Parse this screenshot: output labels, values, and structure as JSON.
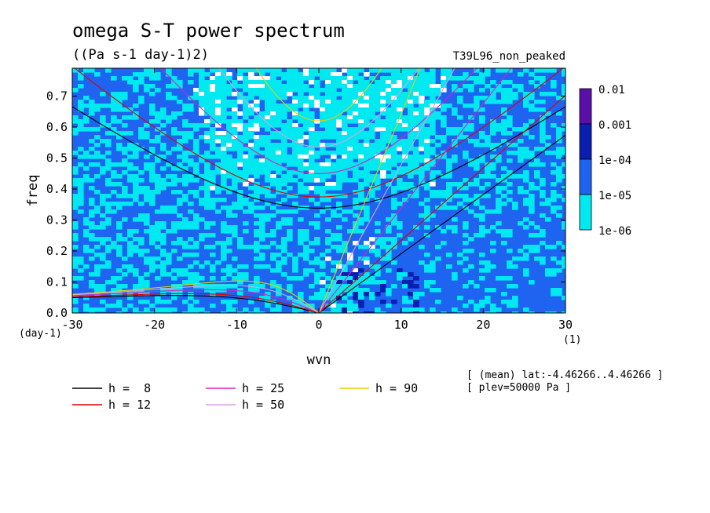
{
  "chart_data": {
    "type": "heatmap",
    "title": "omega S-T power spectrum",
    "subtitle": "((Pa s-1 day-1)2)",
    "run_label": "T39L96_non_peaked",
    "xlabel": "wvn",
    "ylabel": "freq",
    "x_unit": "(1)",
    "y_unit": "(day-1)",
    "xlim": [
      -30,
      30
    ],
    "ylim": [
      0,
      0.79
    ],
    "xticks": [
      -30,
      -20,
      -10,
      0,
      10,
      20,
      30
    ],
    "yticks": [
      0.0,
      0.1,
      0.2,
      0.3,
      0.4,
      0.5,
      0.6,
      0.7
    ],
    "xtick_labels": [
      "-30",
      "-20",
      "-10",
      "0",
      "10",
      "20",
      "30"
    ],
    "ytick_labels": [
      "0.0",
      "0.1",
      "0.2",
      "0.3",
      "0.4",
      "0.5",
      "0.6",
      "0.7"
    ],
    "colorbar": {
      "levels": [
        "0.01",
        "0.001",
        "1e-04",
        "1e-05",
        "1e-06"
      ],
      "colors": [
        "#5a10a8",
        "#0a1fb0",
        "#1e64f0",
        "#00e8f0"
      ]
    },
    "below_min_color": "#ffffff",
    "dispersion_curves": [
      {
        "h": 8,
        "label": "h =  8",
        "color": "#000000"
      },
      {
        "h": 12,
        "label": "h = 12",
        "color": "#e00000"
      },
      {
        "h": 25,
        "label": "h = 25",
        "color": "#e020c0"
      },
      {
        "h": 50,
        "label": "h = 50",
        "color": "#d8a0e8"
      },
      {
        "h": 90,
        "label": "h = 90",
        "color": "#e8d000"
      }
    ],
    "annotations": [
      "[ (mean) lat:-4.46266..4.46266 ]",
      "[ plev=50000 Pa ]"
    ]
  }
}
